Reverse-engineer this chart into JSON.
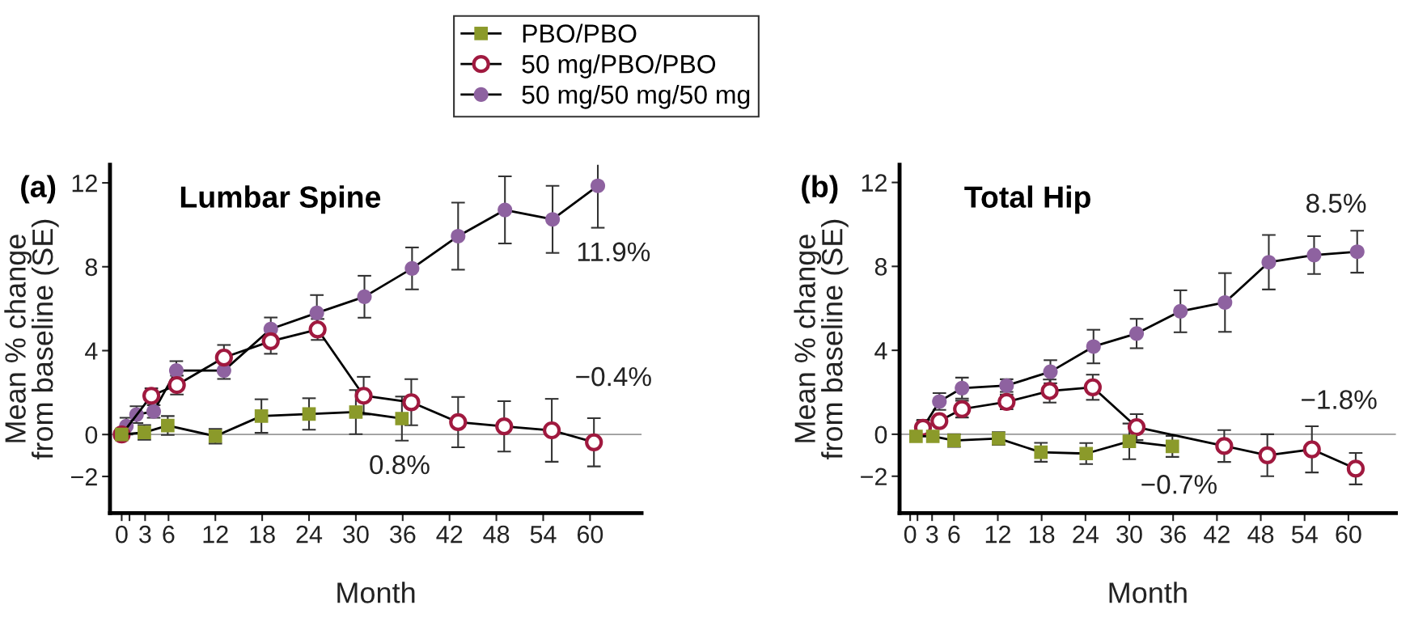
{
  "chart_data": [
    {
      "type": "line",
      "title": "Lumbar Spine",
      "xlabel": "Month",
      "ylabel": "Mean % change\nfrom baseline (SE)",
      "annotations": [
        "(a)",
        "11.9%",
        "−0.4%",
        "0.8%"
      ],
      "xlim": [
        -1.5,
        66.6
      ],
      "ylim": [
        -3.75,
        12.86
      ],
      "xticks": [
        0,
        {
          "value": 1,
          "label": null
        },
        3,
        6,
        12,
        18,
        24,
        30,
        36,
        42,
        48,
        54,
        60
      ],
      "yticks": [
        {
          "value": -2,
          "label": "−2"
        },
        0,
        4,
        8,
        12
      ],
      "grid": false,
      "legend": "top",
      "line_style": "solid",
      "ref_lines": [
        {
          "axis": "y",
          "value": 0,
          "color": "#999999"
        }
      ],
      "series": [
        {
          "name": "PBO/PBO",
          "color": "#8b9a2a",
          "marker": "square",
          "x": [
            0,
            2.9,
            5.9,
            12.0,
            17.9,
            24.0,
            30.0,
            35.9
          ],
          "values": [
            0,
            0.1,
            0.43,
            -0.08,
            0.88,
            0.98,
            1.07,
            0.76
          ],
          "errors": [
            null,
            0.35,
            0.45,
            0.35,
            0.8,
            0.75,
            1.05,
            1.05
          ]
        },
        {
          "name": "50 mg/PBO/PBO",
          "color": "#a0193f",
          "marker": "circle",
          "x": [
            0,
            3.8,
            7.07,
            13.1,
            19.1,
            25.1,
            31.0,
            37.1,
            43.1,
            49.0,
            55.1,
            60.5
          ],
          "values": [
            0,
            1.85,
            2.36,
            3.67,
            4.45,
            5.01,
            1.85,
            1.54,
            0.59,
            0.39,
            0.2,
            -0.37
          ],
          "errors": [
            null,
            0.35,
            0.45,
            0.6,
            0.6,
            0.5,
            0.9,
            1.1,
            1.2,
            1.2,
            1.5,
            1.15
          ]
        },
        {
          "name": "50 mg/50 mg/50 mg",
          "color": "#8e62a0",
          "marker": "circle",
          "x": [
            0,
            0.6,
            1.9,
            4.1,
            7.0,
            13.1,
            19.1,
            25.0,
            31.1,
            37.2,
            43.1,
            49.1,
            55.2,
            61.0
          ],
          "values": [
            0,
            0.4,
            0.95,
            1.1,
            3.05,
            3.05,
            5.03,
            5.8,
            6.57,
            7.92,
            9.46,
            10.71,
            10.26,
            11.86
          ],
          "errors": [
            null,
            0.4,
            0.4,
            0.3,
            0.45,
            0.4,
            0.55,
            0.85,
            1.0,
            1.0,
            1.6,
            1.6,
            1.6,
            2.0
          ]
        }
      ]
    },
    {
      "type": "line",
      "title": "Total Hip",
      "xlabel": "Month",
      "ylabel": "Mean % change\nfrom baseline (SE)",
      "annotations": [
        "(b)",
        "8.5%",
        "−1.8%",
        "−0.7%"
      ],
      "xlim": [
        -1.45,
        66.5
      ],
      "ylim": [
        -3.76,
        12.84
      ],
      "xticks": [
        0,
        {
          "value": 1,
          "label": null
        },
        3,
        6,
        12,
        18,
        24,
        30,
        36,
        42,
        48,
        54,
        60
      ],
      "yticks": [
        {
          "value": -2,
          "label": "−2"
        },
        0,
        4,
        8,
        12
      ],
      "grid": false,
      "line_style": "solid",
      "ref_lines": [
        {
          "axis": "y",
          "value": 0,
          "color": "#999999"
        }
      ],
      "series": [
        {
          "color": "#8b9a2a",
          "marker": "square",
          "x": [
            0.8,
            3.1,
            6.0,
            12.1,
            17.9,
            24.1,
            30.0,
            35.9
          ],
          "values": [
            -0.1,
            -0.1,
            -0.3,
            -0.2,
            -0.86,
            -0.92,
            -0.34,
            -0.58
          ],
          "errors": [
            null,
            null,
            0.3,
            0.3,
            0.45,
            0.5,
            0.85,
            0.5
          ]
        },
        {
          "color": "#a0193f",
          "marker": "circle",
          "x": [
            1.75,
            4.0,
            7.1,
            13.2,
            19.1,
            25.0,
            31.0,
            43.0,
            48.9,
            55.0,
            61.0
          ],
          "values": [
            0.31,
            0.63,
            1.2,
            1.54,
            2.06,
            2.24,
            0.34,
            -0.56,
            -1.0,
            -0.72,
            -1.64
          ],
          "errors": [
            0.35,
            null,
            0.4,
            0.35,
            0.55,
            0.6,
            0.62,
            0.76,
            1.0,
            1.1,
            0.75
          ]
        },
        {
          "color": "#8e62a0",
          "marker": "circle",
          "x": [
            1.8,
            4.0,
            7.1,
            13.2,
            19.2,
            25.1,
            31.0,
            37.0,
            43.1,
            49.1,
            55.3,
            61.2
          ],
          "values": [
            0.34,
            1.56,
            2.2,
            2.32,
            2.98,
            4.18,
            4.8,
            5.86,
            6.28,
            8.2,
            8.54,
            8.7
          ],
          "errors": [
            0.35,
            0.4,
            0.5,
            0.3,
            0.55,
            0.8,
            0.7,
            1.0,
            1.4,
            1.3,
            0.9,
            1.0
          ]
        }
      ]
    }
  ]
}
